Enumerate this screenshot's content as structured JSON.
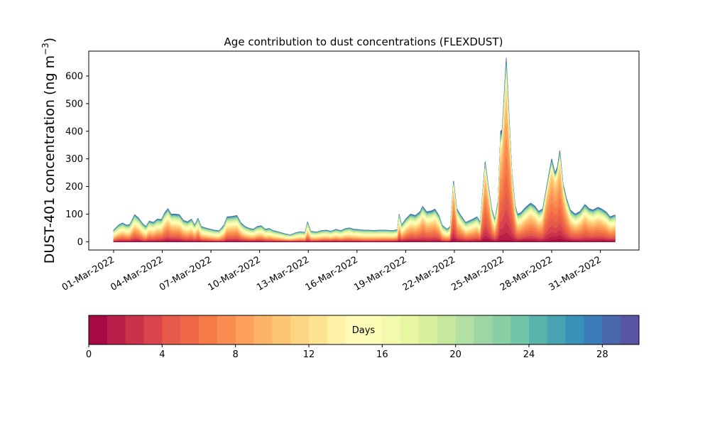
{
  "chart_data": {
    "type": "area",
    "subtype": "stacked",
    "title": "Age contribution to dust concentrations (FLEXDUST)",
    "ylabel_main": "DUST-401 concentration (ng m",
    "ylabel_sup": "−3",
    "ylabel_close": ")",
    "xlabel": "",
    "ylim": [
      -30,
      690
    ],
    "yticks": [
      0,
      100,
      200,
      300,
      400,
      500,
      600
    ],
    "ytick_labels": [
      "0",
      "100",
      "200",
      "300",
      "400",
      "500",
      "600"
    ],
    "xlim_days": [
      -1.53,
      32.38
    ],
    "xticks_days": [
      0,
      3,
      6,
      9,
      12,
      15,
      18,
      21,
      24,
      27,
      30
    ],
    "xtick_labels": [
      "01-Mar-2022",
      "04-Mar-2022",
      "07-Mar-2022",
      "10-Mar-2022",
      "13-Mar-2022",
      "16-Mar-2022",
      "19-Mar-2022",
      "22-Mar-2022",
      "25-Mar-2022",
      "28-Mar-2022",
      "31-Mar-2022"
    ],
    "total_series": [
      [
        0.0,
        42
      ],
      [
        0.3,
        60
      ],
      [
        0.55,
        68
      ],
      [
        0.8,
        60
      ],
      [
        1.0,
        62
      ],
      [
        1.3,
        98
      ],
      [
        1.55,
        85
      ],
      [
        1.8,
        65
      ],
      [
        2.0,
        55
      ],
      [
        2.2,
        75
      ],
      [
        2.45,
        70
      ],
      [
        2.7,
        82
      ],
      [
        2.95,
        80
      ],
      [
        3.15,
        105
      ],
      [
        3.35,
        120
      ],
      [
        3.55,
        100
      ],
      [
        3.8,
        100
      ],
      [
        4.05,
        98
      ],
      [
        4.3,
        78
      ],
      [
        4.55,
        72
      ],
      [
        4.8,
        82
      ],
      [
        5.0,
        60
      ],
      [
        5.2,
        85
      ],
      [
        5.4,
        55
      ],
      [
        5.8,
        48
      ],
      [
        6.2,
        42
      ],
      [
        6.5,
        40
      ],
      [
        6.8,
        60
      ],
      [
        7.0,
        90
      ],
      [
        7.3,
        92
      ],
      [
        7.6,
        95
      ],
      [
        7.85,
        68
      ],
      [
        8.1,
        55
      ],
      [
        8.4,
        48
      ],
      [
        8.6,
        45
      ],
      [
        8.85,
        55
      ],
      [
        9.1,
        58
      ],
      [
        9.35,
        45
      ],
      [
        9.6,
        48
      ],
      [
        9.85,
        40
      ],
      [
        10.2,
        35
      ],
      [
        10.6,
        28
      ],
      [
        10.9,
        25
      ],
      [
        11.2,
        32
      ],
      [
        11.5,
        36
      ],
      [
        11.8,
        34
      ],
      [
        11.95,
        72
      ],
      [
        12.15,
        38
      ],
      [
        12.5,
        35
      ],
      [
        12.8,
        40
      ],
      [
        13.1,
        42
      ],
      [
        13.4,
        38
      ],
      [
        13.7,
        45
      ],
      [
        14.0,
        40
      ],
      [
        14.3,
        48
      ],
      [
        14.55,
        50
      ],
      [
        14.8,
        45
      ],
      [
        15.1,
        44
      ],
      [
        15.4,
        42
      ],
      [
        15.7,
        42
      ],
      [
        16.0,
        41
      ],
      [
        16.4,
        42
      ],
      [
        16.8,
        42
      ],
      [
        17.2,
        40
      ],
      [
        17.5,
        44
      ],
      [
        17.6,
        100
      ],
      [
        17.75,
        60
      ],
      [
        18.0,
        82
      ],
      [
        18.3,
        100
      ],
      [
        18.6,
        95
      ],
      [
        18.9,
        110
      ],
      [
        19.05,
        128
      ],
      [
        19.3,
        108
      ],
      [
        19.6,
        112
      ],
      [
        19.8,
        118
      ],
      [
        20.05,
        95
      ],
      [
        20.25,
        60
      ],
      [
        20.55,
        45
      ],
      [
        20.75,
        55
      ],
      [
        20.95,
        220
      ],
      [
        21.15,
        120
      ],
      [
        21.4,
        95
      ],
      [
        21.7,
        70
      ],
      [
        22.0,
        78
      ],
      [
        22.4,
        90
      ],
      [
        22.6,
        70
      ],
      [
        22.9,
        290
      ],
      [
        23.1,
        200
      ],
      [
        23.3,
        120
      ],
      [
        23.5,
        80
      ],
      [
        23.7,
        150
      ],
      [
        23.85,
        400
      ],
      [
        23.95,
        405
      ],
      [
        24.2,
        665
      ],
      [
        24.35,
        480
      ],
      [
        24.55,
        250
      ],
      [
        24.75,
        130
      ],
      [
        24.9,
        100
      ],
      [
        25.1,
        105
      ],
      [
        25.4,
        125
      ],
      [
        25.7,
        140
      ],
      [
        25.95,
        130
      ],
      [
        26.2,
        110
      ],
      [
        26.45,
        120
      ],
      [
        26.75,
        220
      ],
      [
        27.0,
        300
      ],
      [
        27.2,
        250
      ],
      [
        27.35,
        270
      ],
      [
        27.5,
        330
      ],
      [
        27.7,
        210
      ],
      [
        27.9,
        160
      ],
      [
        28.15,
        115
      ],
      [
        28.45,
        100
      ],
      [
        28.75,
        110
      ],
      [
        29.05,
        135
      ],
      [
        29.3,
        120
      ],
      [
        29.55,
        115
      ],
      [
        29.85,
        125
      ],
      [
        30.1,
        118
      ],
      [
        30.35,
        108
      ],
      [
        30.6,
        90
      ],
      [
        30.9,
        97
      ]
    ],
    "colorbar": {
      "label": "Days",
      "range": [
        0,
        30
      ],
      "ticks": [
        0,
        4,
        8,
        12,
        16,
        20,
        24,
        28
      ],
      "tick_labels": [
        "0",
        "4",
        "8",
        "12",
        "16",
        "20",
        "24",
        "28"
      ],
      "colors": [
        "#a50a45",
        "#b81e48",
        "#ca324c",
        "#d9444e",
        "#e55a4a",
        "#ee6746",
        "#f57a48",
        "#f88c51",
        "#fca05b",
        "#fdb466",
        "#fdc574",
        "#fed583",
        "#fee393",
        "#fff1a7",
        "#fffbb8",
        "#fcfdb6",
        "#f3faae",
        "#e8f6a0",
        "#d8ef9b",
        "#c6e79e",
        "#b2dfa3",
        "#9dd5a4",
        "#88cfa4",
        "#71c4a5",
        "#5ab3ab",
        "#49a2b1",
        "#3990b9",
        "#3b7bb7",
        "#4a66ad",
        "#5954a4"
      ]
    }
  }
}
